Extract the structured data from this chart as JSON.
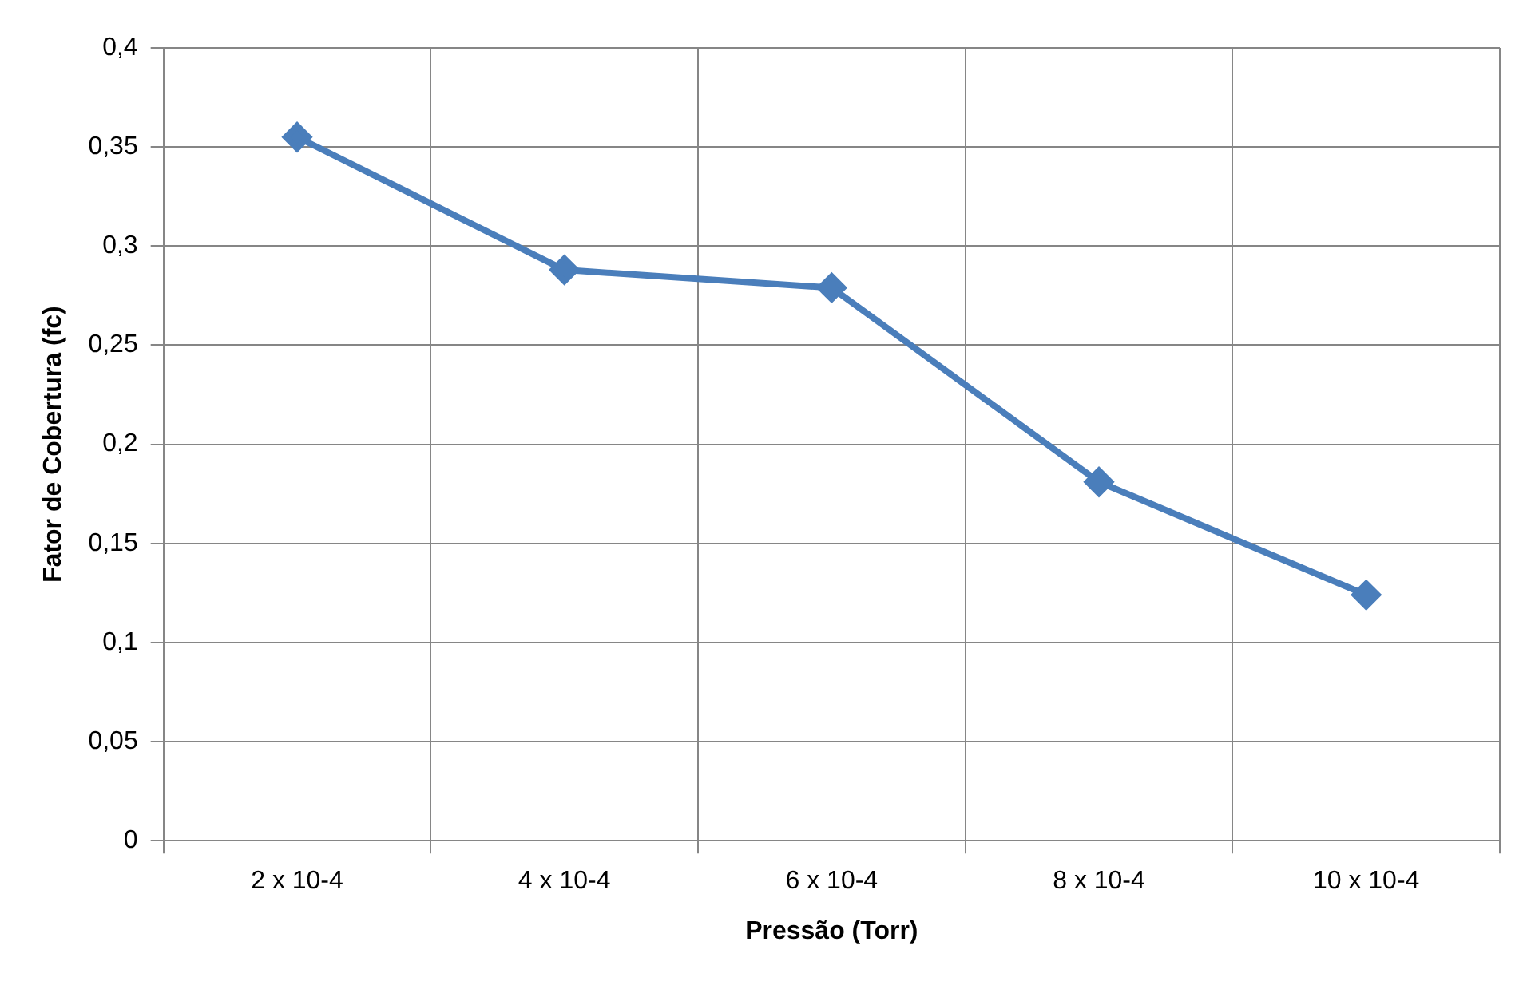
{
  "chart_data": {
    "type": "line",
    "xlabel": "Pressão (Torr)",
    "ylabel": "Fator de Cobertura (fc)",
    "categories": [
      "2 x 10-4",
      "4 x 10-4",
      "6 x 10-4",
      "8 x 10-4",
      "10 x 10-4"
    ],
    "series": [
      {
        "color": "#4a7ebb",
        "values": [
          0.355,
          0.288,
          0.279,
          0.181,
          0.124
        ]
      }
    ],
    "ylim": [
      0,
      0.4
    ],
    "yticks": [
      {
        "value": 0,
        "label": "0"
      },
      {
        "value": 0.05,
        "label": "0,05"
      },
      {
        "value": 0.1,
        "label": "0,1"
      },
      {
        "value": 0.15,
        "label": "0,15"
      },
      {
        "value": 0.2,
        "label": "0,2"
      },
      {
        "value": 0.25,
        "label": "0,25"
      },
      {
        "value": 0.3,
        "label": "0,3"
      },
      {
        "value": 0.35,
        "label": "0,35"
      },
      {
        "value": 0.4,
        "label": "0,4"
      }
    ],
    "grid": true,
    "legend": false,
    "marker": "diamond",
    "line_style": "solid"
  }
}
